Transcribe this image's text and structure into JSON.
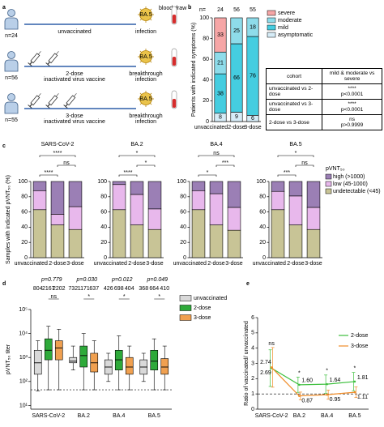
{
  "panel_labels": [
    "a",
    "b",
    "c",
    "d",
    "e"
  ],
  "schematic": {
    "blood_draw": "blood draw",
    "virus": "BA.5",
    "rows": [
      {
        "n": "n=24",
        "vaccine": [
          "unvaccinated"
        ],
        "outcome": [
          "infection"
        ]
      },
      {
        "n": "n=56",
        "vaccine": [
          "2-dose",
          "inactivated virus vaccine"
        ],
        "outcome": [
          "breakthrough",
          "infection"
        ]
      },
      {
        "n": "n=55",
        "vaccine": [
          "3-dose",
          "inactivated virus vaccine"
        ],
        "outcome": [
          "breakthrough",
          "infection"
        ]
      }
    ]
  },
  "table": {
    "header": [
      "cohort",
      "mild & moderate vs severe"
    ],
    "rows": [
      [
        "unvaccinated vs 2-dose",
        "****",
        "p<0.0001"
      ],
      [
        "unvaccinated vs 3-dose",
        "****",
        "p<0.0001"
      ],
      [
        "2-dose vs 3-dose",
        "ns",
        "p>0.9999"
      ]
    ]
  },
  "chart_data": [
    {
      "type": "bar",
      "ylabel": "Patients with indicated symptoms (%)",
      "n_label": "n=",
      "n": [
        24,
        56,
        55
      ],
      "categories": [
        "unvaccinated",
        "2-dose",
        "3-dose"
      ],
      "data_labels": true,
      "series": [
        {
          "name": "asymptomatic",
          "color": "#d6ecf7",
          "values": [
            8,
            9,
            6
          ]
        },
        {
          "name": "mild",
          "color": "#45cde0",
          "values": [
            38,
            66,
            76
          ]
        },
        {
          "name": "moderate",
          "color": "#8edcea",
          "values": [
            21,
            25,
            18
          ]
        },
        {
          "name": "severe",
          "color": "#f6a6a6",
          "values": [
            33,
            0,
            0
          ]
        }
      ],
      "ylim": [
        0,
        100
      ],
      "yticks": [
        0,
        20,
        40,
        60,
        80,
        100
      ]
    },
    {
      "type": "bar",
      "title": "SARS-CoV-2",
      "ylabel": "Samples with indicated pVNT₅₀ (%)",
      "categories": [
        "unvaccinated",
        "2-dose",
        "3-dose"
      ],
      "series": [
        {
          "name": "undetectable (<45)",
          "color": "#c8c496",
          "values": [
            63,
            43,
            37
          ]
        },
        {
          "name": "low (45-1000)",
          "color": "#e8b8ec",
          "values": [
            25,
            14,
            30
          ]
        },
        {
          "name": "high (>1000)",
          "color": "#9b7fb5",
          "values": [
            12,
            43,
            33
          ]
        }
      ],
      "significance": [
        "****",
        "ns",
        "****"
      ],
      "ylim": [
        0,
        100
      ],
      "yticks": [
        0,
        20,
        40,
        60,
        80,
        100
      ]
    },
    {
      "type": "bar",
      "title": "BA.2",
      "categories": [
        "unvaccinated",
        "2-dose",
        "3-dose"
      ],
      "series": [
        {
          "name": "undetectable (<45)",
          "color": "#c8c496",
          "values": [
            63,
            43,
            37
          ]
        },
        {
          "name": "low (45-1000)",
          "color": "#e8b8ec",
          "values": [
            33,
            40,
            27
          ]
        },
        {
          "name": "high (>1000)",
          "color": "#9b7fb5",
          "values": [
            4,
            17,
            36
          ]
        }
      ],
      "significance": [
        "*",
        "*",
        "****"
      ],
      "ylim": [
        0,
        100
      ],
      "yticks": [
        0,
        20,
        40,
        60,
        80,
        100
      ]
    },
    {
      "type": "bar",
      "title": "BA.4",
      "categories": [
        "unvaccinated",
        "2-dose",
        "3-dose"
      ],
      "series": [
        {
          "name": "undetectable (<45)",
          "color": "#c8c496",
          "values": [
            63,
            43,
            36
          ]
        },
        {
          "name": "low (45-1000)",
          "color": "#e8b8ec",
          "values": [
            25,
            41,
            30
          ]
        },
        {
          "name": "high (>1000)",
          "color": "#9b7fb5",
          "values": [
            12,
            16,
            34
          ]
        }
      ],
      "significance": [
        "ns",
        "***",
        "*"
      ],
      "ylim": [
        0,
        100
      ],
      "yticks": [
        0,
        20,
        40,
        60,
        80,
        100
      ]
    },
    {
      "type": "bar",
      "title": "BA.5",
      "legend_title": "pVNT₅₀",
      "categories": [
        "unvaccinated",
        "2-dose",
        "3-dose"
      ],
      "series": [
        {
          "name": "undetectable (<45)",
          "color": "#c8c496",
          "values": [
            63,
            43,
            37
          ]
        },
        {
          "name": "low (45-1000)",
          "color": "#e8b8ec",
          "values": [
            24,
            38,
            29
          ]
        },
        {
          "name": "high (>1000)",
          "color": "#9b7fb5",
          "values": [
            13,
            19,
            34
          ]
        }
      ],
      "significance": [
        "*",
        "ns",
        "***"
      ],
      "ylim": [
        0,
        100
      ],
      "yticks": [
        0,
        20,
        40,
        60,
        80,
        100
      ]
    },
    {
      "type": "box",
      "ylabel": "pVNT₅₀ titer",
      "categories": [
        "SARS-CoV-2",
        "BA.2",
        "BA.4",
        "BA.5"
      ],
      "p_values": [
        "p=0.779",
        "p=0.030",
        "p=0.012",
        "p=0.049"
      ],
      "significance": [
        "ns",
        "*",
        "*",
        "*"
      ],
      "series": [
        {
          "name": "unvaccinated",
          "color": "#d9d9d9",
          "min": [
            40,
            300,
            100,
            100
          ],
          "q1": [
            200,
            600,
            200,
            200
          ],
          "median": [
            600,
            700,
            400,
            400
          ],
          "q3": [
            2000,
            1000,
            800,
            800
          ],
          "max": [
            5000,
            3000,
            1500,
            1500
          ],
          "gmt": [
            804,
            732,
            426,
            368
          ]
        },
        {
          "name": "2-dose",
          "color": "#2eaa3a",
          "min": [
            45,
            45,
            45,
            45
          ],
          "q1": [
            800,
            400,
            300,
            300
          ],
          "median": [
            2000,
            1200,
            800,
            700
          ],
          "q3": [
            6000,
            3000,
            2000,
            2000
          ],
          "max": [
            20000,
            10000,
            8000,
            6000
          ],
          "gmt": [
            2167,
            1171,
            698,
            664
          ]
        },
        {
          "name": "3-dose",
          "color": "#f0a050",
          "min": [
            45,
            45,
            45,
            45
          ],
          "q1": [
            800,
            250,
            200,
            200
          ],
          "median": [
            2500,
            600,
            400,
            400
          ],
          "q3": [
            5000,
            1500,
            1000,
            900
          ],
          "max": [
            15000,
            5000,
            3000,
            3000
          ],
          "gmt": [
            2202,
            637,
            404,
            410
          ]
        }
      ],
      "log_scale": true,
      "hline": 45,
      "ylim": [
        7,
        100000
      ],
      "yticks": [
        {
          "value": 10,
          "label": "10¹"
        },
        {
          "value": 100,
          "label": "10²"
        },
        {
          "value": 1000,
          "label": "10³"
        },
        {
          "value": 10000,
          "label": "10⁴"
        },
        {
          "value": 100000,
          "label": "10⁵"
        }
      ]
    },
    {
      "type": "line",
      "ylabel": "Ratio of vaccinated/ unvaccinated",
      "categories": [
        "SARS-CoV-2",
        "BA.2",
        "BA.4",
        "BA.5"
      ],
      "significance": [
        "ns",
        "*",
        "*",
        "*"
      ],
      "series": [
        {
          "name": "2-dose",
          "color": "#3cbf3c",
          "values": [
            2.69,
            1.6,
            1.64,
            1.81
          ],
          "value_labels": [
            "2.69",
            "1.60",
            "1.64",
            "1.81"
          ],
          "errors": [
            1.2,
            0.5,
            0.6,
            0.6
          ]
        },
        {
          "name": "3-dose",
          "color": "#f08c28",
          "values": [
            2.74,
            0.87,
            0.95,
            1.11
          ],
          "value_labels": [
            "2.74",
            "0.87",
            "0.95",
            "1.11"
          ],
          "errors": [
            1.3,
            0.25,
            0.3,
            0.35
          ]
        }
      ],
      "hline": 1,
      "ylim": [
        0,
        6
      ],
      "yticks": [
        0,
        1,
        2,
        3,
        4,
        5,
        6
      ]
    }
  ]
}
